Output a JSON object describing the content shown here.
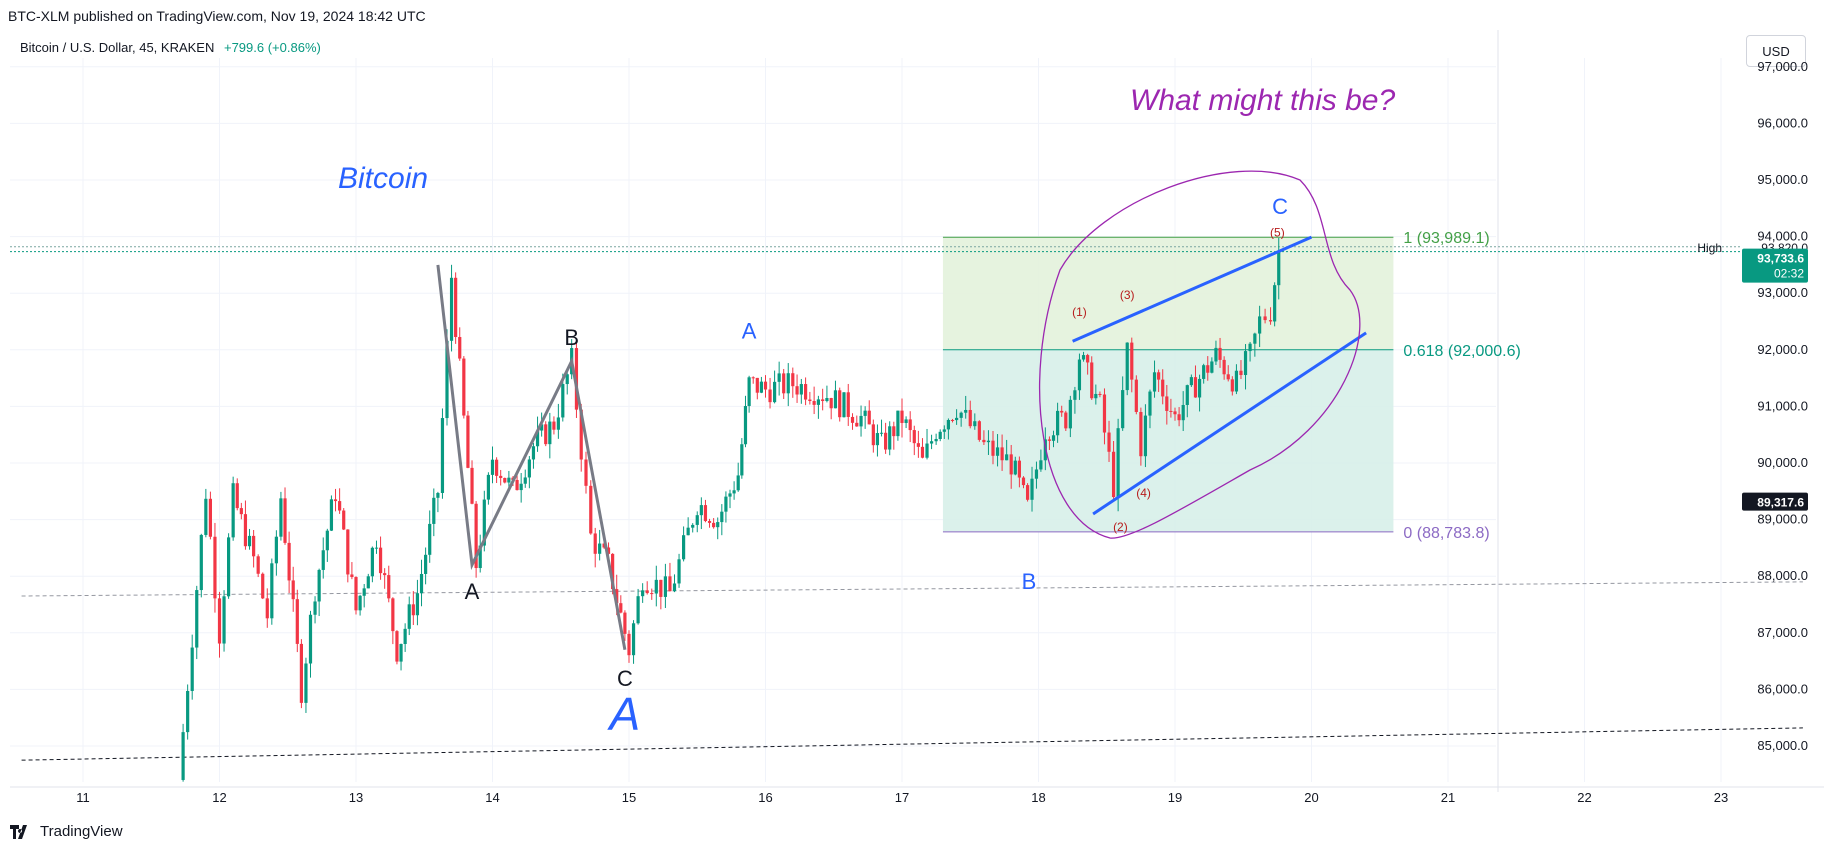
{
  "header": {
    "publish_line": "BTC-XLM published on TradingView.com, Nov 19, 2024 18:42 UTC",
    "symbol_line": "Bitcoin / U.S. Dollar, 45, KRAKEN",
    "change": "+799.6 (+0.86%)"
  },
  "currency_button": "USD",
  "footer": {
    "logo_text": "TradingView"
  },
  "colors": {
    "up": "#089981",
    "down": "#f23645",
    "wave_blue": "#2962ff",
    "annotation_purple": "#9c27b0",
    "fib_green": "#43a047",
    "fib_teal": "#089981",
    "fib_purple": "#8c6ac4",
    "zone_upper": "#e3f2dc",
    "zone_lower": "#d7efe9"
  },
  "chart_data": {
    "type": "candlestick",
    "instrument": "Bitcoin / U.S. Dollar, 45, KRAKEN",
    "x_ticks": [
      "11",
      "12",
      "13",
      "14",
      "15",
      "16",
      "17",
      "18",
      "19",
      "20",
      "21",
      "22",
      "23"
    ],
    "y_ticks": [
      "85,000.0",
      "86,000.0",
      "87,000.0",
      "88,000.0",
      "89,000.0",
      "90,000.0",
      "91,000.0",
      "92,000.0",
      "93,000.0",
      "94,000.0",
      "95,000.0",
      "96,000.0",
      "97,000.0"
    ],
    "ylim": [
      84400,
      97200
    ],
    "xlim_days": [
      10.55,
      23.7
    ],
    "price_path": [
      [
        11.7,
        84400
      ],
      [
        11.9,
        89500
      ],
      [
        12.0,
        87000
      ],
      [
        12.1,
        89400
      ],
      [
        12.25,
        88300
      ],
      [
        12.35,
        87300
      ],
      [
        12.45,
        89400
      ],
      [
        12.6,
        86000
      ],
      [
        12.7,
        87800
      ],
      [
        12.85,
        89500
      ],
      [
        13.0,
        87400
      ],
      [
        13.15,
        88700
      ],
      [
        13.3,
        86700
      ],
      [
        13.45,
        87700
      ],
      [
        13.6,
        89500
      ],
      [
        13.7,
        93300
      ],
      [
        13.88,
        88200
      ],
      [
        14.0,
        90100
      ],
      [
        14.15,
        89500
      ],
      [
        14.3,
        90300
      ],
      [
        14.45,
        90700
      ],
      [
        14.58,
        91800
      ],
      [
        14.72,
        88700
      ],
      [
        14.85,
        88200
      ],
      [
        15.0,
        86700
      ],
      [
        15.1,
        88000
      ],
      [
        15.3,
        87700
      ],
      [
        15.5,
        89300
      ],
      [
        15.65,
        89000
      ],
      [
        15.8,
        89800
      ],
      [
        15.88,
        91400
      ],
      [
        16.0,
        91300
      ],
      [
        16.2,
        91400
      ],
      [
        16.45,
        91200
      ],
      [
        16.7,
        90800
      ],
      [
        16.85,
        90300
      ],
      [
        17.0,
        90800
      ],
      [
        17.15,
        90000
      ],
      [
        17.25,
        90600
      ],
      [
        17.4,
        91000
      ],
      [
        17.6,
        90300
      ],
      [
        17.8,
        90000
      ],
      [
        17.92,
        89200
      ],
      [
        18.05,
        90600
      ],
      [
        18.2,
        90800
      ],
      [
        18.3,
        91900
      ],
      [
        18.45,
        91000
      ],
      [
        18.55,
        89600
      ],
      [
        18.65,
        92000
      ],
      [
        18.75,
        90300
      ],
      [
        18.85,
        91600
      ],
      [
        19.0,
        90800
      ],
      [
        19.15,
        91400
      ],
      [
        19.3,
        91900
      ],
      [
        19.45,
        91400
      ],
      [
        19.55,
        91900
      ],
      [
        19.62,
        92500
      ],
      [
        19.7,
        92700
      ],
      [
        19.76,
        93733.6
      ]
    ],
    "last_price": "93,733.6",
    "countdown": "02:32",
    "high_label": "High",
    "high_value": "93,820.0",
    "marker_price": "89,317.6",
    "fib": {
      "levels": [
        {
          "ratio": "1",
          "price": 93989.1,
          "label": "1 (93,989.1)"
        },
        {
          "ratio": "0.618",
          "price": 92000.6,
          "label": "0.618 (92,000.6)"
        },
        {
          "ratio": "0",
          "price": 88783.8,
          "label": "0 (88,783.8)"
        }
      ],
      "x_start_day": 17.3,
      "x_end_day": 20.6
    },
    "annotations": {
      "title_left": "Bitcoin",
      "question": "What might this be?",
      "abc_black": [
        {
          "label": "A",
          "day": 13.85,
          "price": 88200
        },
        {
          "label": "B",
          "day": 14.58,
          "price": 91800
        },
        {
          "label": "C",
          "day": 14.97,
          "price": 86700
        }
      ],
      "abc_black_start": {
        "day": 13.6,
        "price": 93500
      },
      "big_a": "A",
      "blue_labels": [
        {
          "label": "A",
          "day": 15.88,
          "price": 92200
        },
        {
          "label": "B",
          "day": 17.93,
          "price": 88200
        },
        {
          "label": "C",
          "day": 19.77,
          "price": 94400
        }
      ],
      "wave_counts": [
        {
          "label": "(1)",
          "day": 18.3,
          "price": 92600
        },
        {
          "label": "(2)",
          "day": 18.6,
          "price": 88800
        },
        {
          "label": "(3)",
          "day": 18.65,
          "price": 92900
        },
        {
          "label": "(4)",
          "day": 18.77,
          "price": 89400
        },
        {
          "label": "(5)",
          "day": 19.75,
          "price": 94000
        }
      ],
      "upper_trendline": [
        [
          18.25,
          92150
        ],
        [
          20.0,
          93990
        ]
      ],
      "lower_trendline": [
        [
          18.4,
          89100
        ],
        [
          20.4,
          92300
        ]
      ]
    },
    "dashed_lines": [
      {
        "style": "gray",
        "from": [
          10.55,
          87650
        ],
        "to": [
          23.6,
          87900
        ]
      },
      {
        "style": "black",
        "from": [
          10.55,
          84750
        ],
        "to": [
          23.6,
          85320
        ]
      }
    ]
  }
}
